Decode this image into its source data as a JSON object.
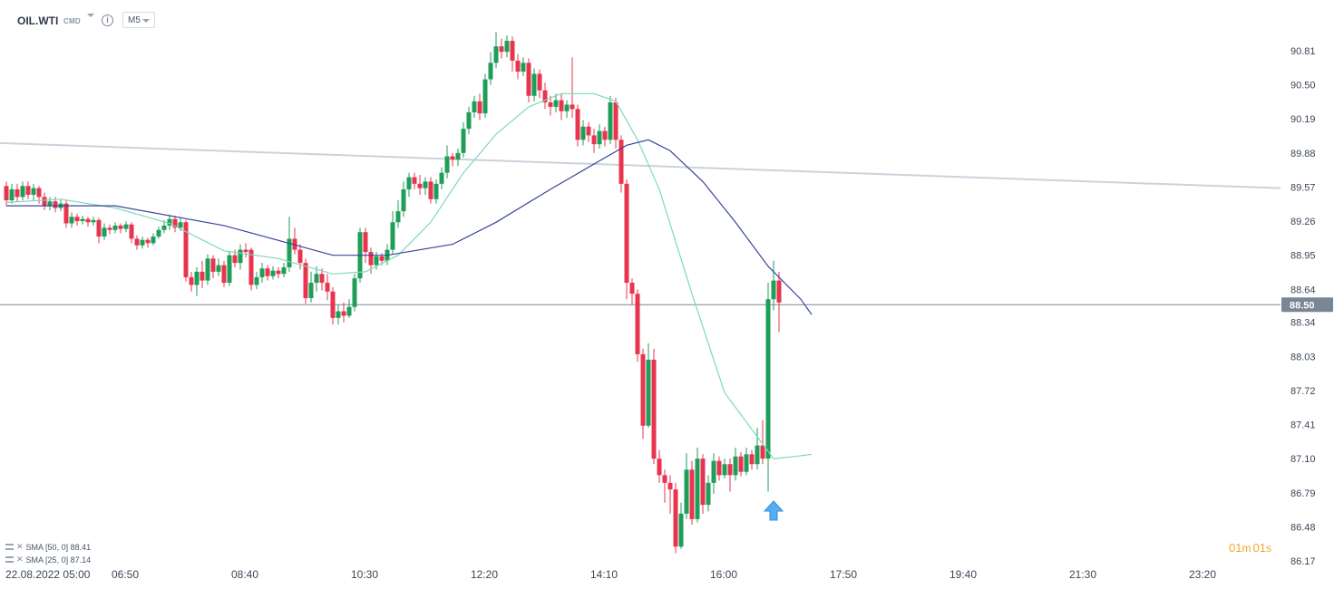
{
  "header": {
    "symbol": "OIL.WTI",
    "source": "CMD",
    "info_icon": "info-icon",
    "timeframe": "M5"
  },
  "indicators": [
    {
      "label": "SMA [50, 0] 88.41",
      "color": "#39459a"
    },
    {
      "label": "SMA [25, 0] 87.14",
      "color": "#7fd8be"
    }
  ],
  "timer": {
    "minutes": "01",
    "minutes_unit": "m",
    "seconds": "01",
    "seconds_unit": "s"
  },
  "colors": {
    "bullish": "#1f9e5a",
    "bearish": "#e8344e",
    "sma50": "#39459a",
    "sma25": "#7fd8be",
    "trendline": "#c9d3dc",
    "priceline": "#7a8595",
    "price_label_bg": "#7a8595",
    "marker": "#57aef0"
  },
  "chart_data": {
    "type": "candlestick",
    "instrument": "OIL.WTI",
    "interval": "M5",
    "y_ticks": [
      "90.81",
      "90.50",
      "90.19",
      "89.88",
      "89.57",
      "89.26",
      "88.95",
      "88.64",
      "88.34",
      "88.03",
      "87.72",
      "87.41",
      "87.10",
      "86.79",
      "86.48",
      "86.17"
    ],
    "ylim": [
      86.17,
      90.81
    ],
    "x_ticks": [
      "22.08.2022  05:00",
      "06:50",
      "08:40",
      "10:30",
      "12:20",
      "14:10",
      "16:00",
      "17:50",
      "19:40",
      "21:30",
      "23:20"
    ],
    "x_tick_times": [
      "05:00",
      "06:50",
      "08:40",
      "10:30",
      "12:20",
      "14:10",
      "16:00",
      "17:50",
      "19:40",
      "21:30",
      "23:20"
    ],
    "start_time": "05:00",
    "current_price": "88.50",
    "current_price_value": 88.5,
    "candles": [
      [
        89.58,
        89.45,
        89.62,
        89.4
      ],
      [
        89.45,
        89.55,
        89.6,
        89.42
      ],
      [
        89.55,
        89.48,
        89.6,
        89.44
      ],
      [
        89.48,
        89.58,
        89.62,
        89.45
      ],
      [
        89.58,
        89.5,
        89.62,
        89.46
      ],
      [
        89.5,
        89.56,
        89.6,
        89.45
      ],
      [
        89.56,
        89.48,
        89.58,
        89.42
      ],
      [
        89.48,
        89.4,
        89.52,
        89.36
      ],
      [
        89.4,
        89.44,
        89.48,
        89.36
      ],
      [
        89.44,
        89.38,
        89.48,
        89.34
      ],
      [
        89.38,
        89.42,
        89.46,
        89.35
      ],
      [
        89.42,
        89.24,
        89.45,
        89.2
      ],
      [
        89.24,
        89.3,
        89.34,
        89.2
      ],
      [
        89.3,
        89.26,
        89.33,
        89.22
      ],
      [
        89.26,
        89.28,
        89.31,
        89.23
      ],
      [
        89.28,
        89.25,
        89.3,
        89.21
      ],
      [
        89.25,
        89.27,
        89.3,
        89.22
      ],
      [
        89.27,
        89.12,
        89.29,
        89.06
      ],
      [
        89.12,
        89.2,
        89.24,
        89.09
      ],
      [
        89.2,
        89.18,
        89.23,
        89.14
      ],
      [
        89.18,
        89.22,
        89.25,
        89.15
      ],
      [
        89.22,
        89.19,
        89.24,
        89.15
      ],
      [
        89.19,
        89.23,
        89.26,
        89.16
      ],
      [
        89.23,
        89.1,
        89.25,
        89.06
      ],
      [
        89.1,
        89.04,
        89.13,
        89.0
      ],
      [
        89.04,
        89.09,
        89.12,
        89.01
      ],
      [
        89.09,
        89.06,
        89.11,
        89.02
      ],
      [
        89.06,
        89.12,
        89.15,
        89.04
      ],
      [
        89.12,
        89.18,
        89.21,
        89.1
      ],
      [
        89.18,
        89.22,
        89.27,
        89.15
      ],
      [
        89.22,
        89.28,
        89.32,
        89.18
      ],
      [
        89.28,
        89.2,
        89.31,
        89.16
      ],
      [
        89.2,
        89.25,
        89.29,
        89.17
      ],
      [
        89.25,
        88.75,
        89.27,
        88.71
      ],
      [
        88.75,
        88.68,
        88.8,
        88.62
      ],
      [
        88.68,
        88.8,
        88.84,
        88.58
      ],
      [
        88.8,
        88.72,
        88.9,
        88.65
      ],
      [
        88.72,
        88.92,
        88.96,
        88.68
      ],
      [
        88.92,
        88.8,
        88.95,
        88.74
      ],
      [
        88.8,
        88.86,
        88.92,
        88.76
      ],
      [
        88.86,
        88.7,
        88.9,
        88.66
      ],
      [
        88.7,
        88.95,
        88.99,
        88.67
      ],
      [
        88.95,
        88.88,
        89.0,
        88.84
      ],
      [
        88.88,
        89.0,
        89.05,
        88.82
      ],
      [
        89.0,
        88.98,
        89.06,
        88.93
      ],
      [
        89.0,
        88.68,
        89.02,
        88.63
      ],
      [
        88.68,
        88.75,
        88.8,
        88.64
      ],
      [
        88.75,
        88.83,
        88.88,
        88.7
      ],
      [
        88.83,
        88.76,
        88.86,
        88.72
      ],
      [
        88.76,
        88.81,
        88.85,
        88.73
      ],
      [
        88.81,
        88.78,
        88.84,
        88.74
      ],
      [
        88.78,
        88.84,
        88.88,
        88.75
      ],
      [
        88.84,
        89.1,
        89.3,
        88.8
      ],
      [
        89.1,
        89.0,
        89.2,
        88.96
      ],
      [
        89.0,
        88.88,
        89.05,
        88.82
      ],
      [
        88.88,
        88.56,
        88.92,
        88.51
      ],
      [
        88.56,
        88.7,
        88.8,
        88.52
      ],
      [
        88.7,
        88.78,
        88.85,
        88.62
      ],
      [
        88.78,
        88.7,
        88.83,
        88.63
      ],
      [
        88.7,
        88.62,
        88.78,
        88.54
      ],
      [
        88.62,
        88.38,
        88.66,
        88.32
      ],
      [
        88.38,
        88.44,
        88.5,
        88.32
      ],
      [
        88.44,
        88.4,
        88.52,
        88.34
      ],
      [
        88.4,
        88.48,
        88.55,
        88.38
      ],
      [
        88.48,
        88.74,
        88.78,
        88.44
      ],
      [
        88.74,
        89.16,
        89.2,
        88.7
      ],
      [
        89.16,
        88.98,
        89.2,
        88.88
      ],
      [
        88.98,
        88.86,
        89.02,
        88.78
      ],
      [
        88.86,
        88.94,
        88.98,
        88.82
      ],
      [
        88.94,
        88.9,
        88.97,
        88.86
      ],
      [
        88.9,
        89.0,
        89.05,
        88.86
      ],
      [
        89.0,
        89.25,
        89.35,
        88.96
      ],
      [
        89.25,
        89.35,
        89.45,
        89.2
      ],
      [
        89.35,
        89.55,
        89.62,
        89.3
      ],
      [
        89.55,
        89.66,
        89.7,
        89.48
      ],
      [
        89.66,
        89.6,
        89.7,
        89.55
      ],
      [
        89.6,
        89.56,
        89.68,
        89.5
      ],
      [
        89.56,
        89.62,
        89.66,
        89.5
      ],
      [
        89.62,
        89.46,
        89.66,
        89.42
      ],
      [
        89.46,
        89.6,
        89.64,
        89.42
      ],
      [
        89.6,
        89.7,
        89.75,
        89.55
      ],
      [
        89.7,
        89.85,
        89.95,
        89.65
      ],
      [
        89.85,
        89.82,
        89.88,
        89.76
      ],
      [
        89.82,
        89.88,
        89.92,
        89.76
      ],
      [
        89.88,
        90.1,
        90.16,
        89.84
      ],
      [
        90.1,
        90.25,
        90.3,
        90.05
      ],
      [
        90.25,
        90.35,
        90.4,
        90.2
      ],
      [
        90.35,
        90.24,
        90.42,
        90.18
      ],
      [
        90.24,
        90.55,
        90.6,
        90.2
      ],
      [
        90.55,
        90.7,
        90.8,
        90.5
      ],
      [
        90.7,
        90.85,
        90.98,
        90.65
      ],
      [
        90.85,
        90.8,
        90.92,
        90.74
      ],
      [
        90.8,
        90.9,
        90.95,
        90.75
      ],
      [
        90.9,
        90.72,
        90.94,
        90.62
      ],
      [
        90.72,
        90.62,
        90.78,
        90.55
      ],
      [
        90.62,
        90.7,
        90.75,
        90.58
      ],
      [
        90.7,
        90.4,
        90.74,
        90.34
      ],
      [
        90.4,
        90.6,
        90.65,
        90.35
      ],
      [
        90.6,
        90.45,
        90.64,
        90.38
      ],
      [
        90.45,
        90.34,
        90.52,
        90.28
      ],
      [
        90.34,
        90.3,
        90.4,
        90.22
      ],
      [
        90.3,
        90.36,
        90.42,
        90.25
      ],
      [
        90.36,
        90.26,
        90.42,
        90.18
      ],
      [
        90.26,
        90.32,
        90.36,
        90.2
      ],
      [
        90.32,
        90.28,
        90.75,
        90.2
      ],
      [
        90.28,
        90.0,
        90.32,
        89.94
      ],
      [
        90.0,
        90.12,
        90.18,
        89.95
      ],
      [
        90.12,
        90.04,
        90.16,
        89.98
      ],
      [
        90.04,
        89.96,
        90.1,
        89.88
      ],
      [
        89.96,
        90.08,
        90.14,
        89.92
      ],
      [
        90.08,
        90.0,
        90.12,
        89.94
      ],
      [
        90.0,
        90.34,
        90.4,
        89.96
      ],
      [
        90.34,
        90.0,
        90.38,
        89.92
      ],
      [
        90.0,
        89.6,
        90.04,
        89.52
      ],
      [
        89.6,
        88.7,
        89.64,
        88.55
      ],
      [
        88.7,
        88.6,
        88.74,
        88.5
      ],
      [
        88.6,
        88.05,
        88.64,
        87.98
      ],
      [
        88.05,
        87.4,
        88.1,
        87.28
      ],
      [
        87.4,
        88.0,
        88.15,
        87.38
      ],
      [
        88.0,
        87.1,
        88.1,
        87.05
      ],
      [
        87.1,
        86.95,
        87.18,
        86.88
      ],
      [
        86.95,
        86.88,
        87.0,
        86.7
      ],
      [
        86.88,
        86.82,
        86.95,
        86.6
      ],
      [
        86.82,
        86.3,
        86.88,
        86.24
      ],
      [
        86.3,
        86.6,
        86.7,
        86.28
      ],
      [
        86.6,
        87.0,
        87.15,
        86.55
      ],
      [
        87.0,
        86.55,
        87.08,
        86.5
      ],
      [
        86.55,
        87.1,
        87.2,
        86.52
      ],
      [
        87.1,
        86.68,
        87.14,
        86.6
      ],
      [
        86.68,
        86.88,
        86.95,
        86.62
      ],
      [
        86.88,
        87.08,
        87.15,
        86.78
      ],
      [
        87.08,
        86.95,
        87.12,
        86.9
      ],
      [
        86.95,
        87.05,
        87.1,
        86.92
      ],
      [
        87.05,
        86.95,
        87.1,
        86.8
      ],
      [
        86.95,
        87.12,
        87.2,
        86.9
      ],
      [
        87.12,
        86.98,
        87.16,
        86.94
      ],
      [
        86.98,
        87.14,
        87.2,
        86.95
      ],
      [
        87.14,
        87.05,
        87.18,
        87.0
      ],
      [
        87.05,
        87.22,
        87.38,
        87.0
      ],
      [
        87.22,
        87.1,
        87.45,
        87.05
      ],
      [
        87.1,
        88.55,
        88.7,
        86.8
      ],
      [
        88.55,
        88.72,
        88.9,
        88.45
      ],
      [
        88.72,
        88.52,
        88.8,
        88.25
      ]
    ],
    "sma25": [
      [
        0,
        89.43
      ],
      [
        10,
        89.46
      ],
      [
        20,
        89.38
      ],
      [
        30,
        89.24
      ],
      [
        40,
        88.99
      ],
      [
        50,
        88.92
      ],
      [
        60,
        88.78
      ],
      [
        66,
        88.8
      ],
      [
        72,
        88.95
      ],
      [
        78,
        89.25
      ],
      [
        84,
        89.7
      ],
      [
        90,
        90.05
      ],
      [
        96,
        90.3
      ],
      [
        102,
        90.42
      ],
      [
        108,
        90.42
      ],
      [
        112,
        90.35
      ],
      [
        116,
        90.0
      ],
      [
        120,
        89.55
      ],
      [
        126,
        88.6
      ],
      [
        132,
        87.7
      ],
      [
        138,
        87.3
      ],
      [
        141,
        87.1
      ],
      [
        145,
        87.12
      ],
      [
        148,
        87.14
      ]
    ],
    "sma50": [
      [
        0,
        89.4
      ],
      [
        20,
        89.4
      ],
      [
        40,
        89.22
      ],
      [
        60,
        88.95
      ],
      [
        70,
        88.95
      ],
      [
        82,
        89.05
      ],
      [
        90,
        89.25
      ],
      [
        100,
        89.55
      ],
      [
        108,
        89.78
      ],
      [
        114,
        89.95
      ],
      [
        118,
        90.0
      ],
      [
        122,
        89.9
      ],
      [
        128,
        89.62
      ],
      [
        134,
        89.25
      ],
      [
        140,
        88.85
      ],
      [
        146,
        88.55
      ],
      [
        148,
        88.41
      ]
    ],
    "trendline": [
      [
        89.97,
        89.56
      ]
    ]
  }
}
